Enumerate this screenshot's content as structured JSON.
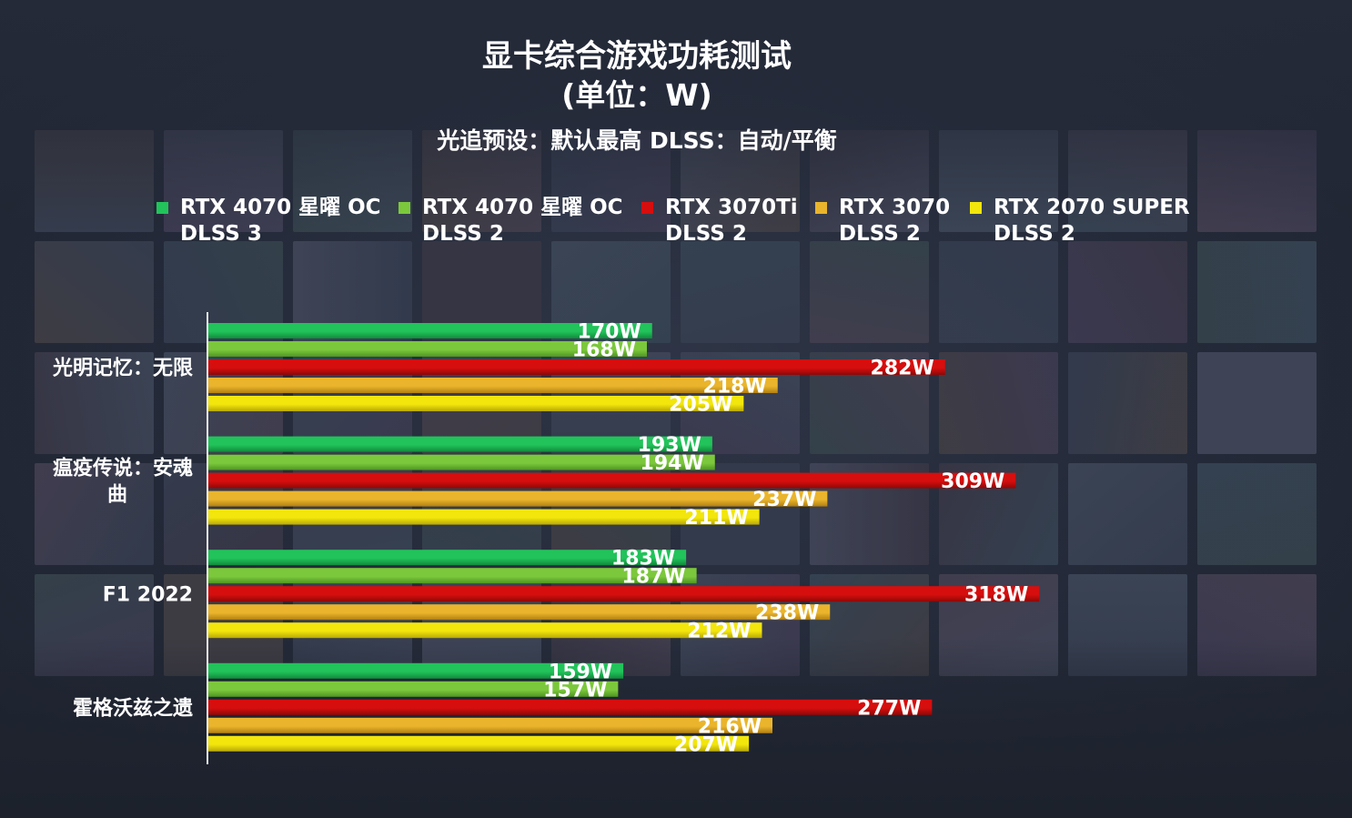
{
  "title": "显卡综合游戏功耗测试",
  "title_unit": "(单位：W)",
  "subtitle": "光追预设：默认最高   DLSS：自动/平衡",
  "legend": [
    {
      "line1": "RTX 4070 星曜 OC",
      "line2": "DLSS 3"
    },
    {
      "line1": "RTX 4070 星曜 OC",
      "line2": "DLSS 2"
    },
    {
      "line1": "RTX 3070Ti",
      "line2": "DLSS 2"
    },
    {
      "line1": "RTX 3070",
      "line2": "DLSS 2"
    },
    {
      "line1": "RTX 2070 SUPER",
      "line2": "DLSS 2"
    }
  ],
  "colors": {
    "series": [
      "#21c35a",
      "#7cc83c",
      "#d60e0e",
      "#eab52c",
      "#f2e60c"
    ],
    "series_dark": [
      "#118a3c",
      "#4f9622",
      "#8e0808",
      "#b27f12",
      "#b8a808"
    ],
    "background": "#262c3a",
    "text": "#ffffff"
  },
  "chart_data": {
    "type": "bar",
    "orientation": "horizontal",
    "categories": [
      "光明记忆：无限",
      "瘟疫传说：安魂曲",
      "F1 2022",
      "霍格沃兹之遗"
    ],
    "series": [
      {
        "name": "RTX 4070 星曜 OC DLSS 3",
        "values": [
          170,
          193,
          183,
          159
        ]
      },
      {
        "name": "RTX 4070 星曜 OC DLSS 2",
        "values": [
          168,
          194,
          187,
          157
        ]
      },
      {
        "name": "RTX 3070Ti DLSS 2",
        "values": [
          282,
          309,
          318,
          277
        ]
      },
      {
        "name": "RTX 3070 DLSS 2",
        "values": [
          218,
          237,
          238,
          216
        ]
      },
      {
        "name": "RTX 2070 SUPER DLSS 2",
        "values": [
          205,
          211,
          212,
          207
        ]
      }
    ],
    "value_suffix": "W",
    "xlim": [
      0,
      350
    ],
    "grid": false,
    "legend_position": "top",
    "title": "显卡综合游戏功耗测试"
  }
}
